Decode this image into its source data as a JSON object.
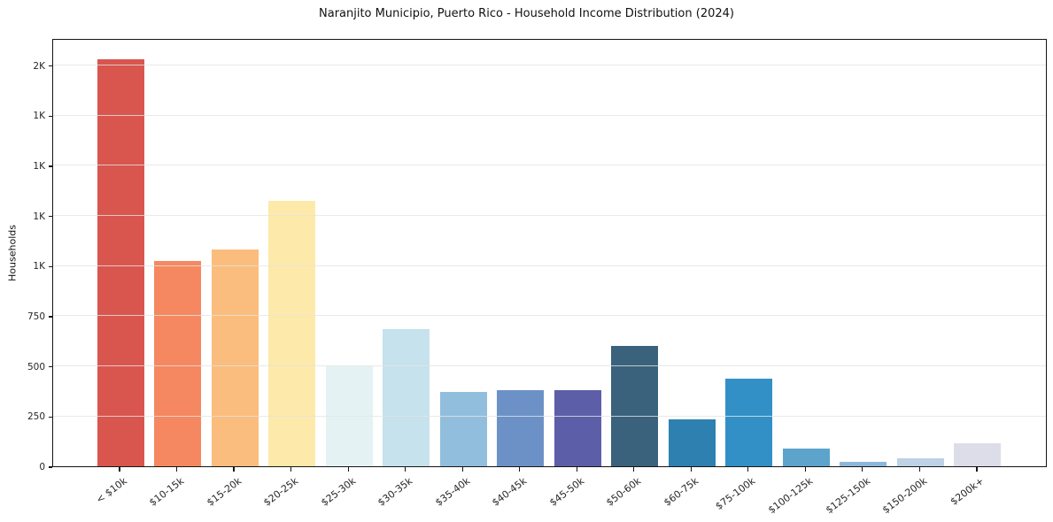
{
  "chart_data": {
    "type": "bar",
    "title": "Naranjito Municipio, Puerto Rico - Household Income Distribution (2024)",
    "xlabel": "",
    "ylabel": "Households",
    "categories": [
      "< $10k",
      "$10-15k",
      "$15-20k",
      "$20-25k",
      "$25-30k",
      "$30-35k",
      "$35-40k",
      "$40-45k",
      "$45-50k",
      "$50-60k",
      "$60-75k",
      "$75-100k",
      "$100-125k",
      "$125-150k",
      "$150-200k",
      "$200k+"
    ],
    "values": [
      2030,
      1025,
      1080,
      1325,
      500,
      685,
      370,
      380,
      380,
      600,
      235,
      435,
      90,
      20,
      40,
      115
    ],
    "bar_colors": [
      "#d9564f",
      "#f58860",
      "#fbbd7d",
      "#fde9a9",
      "#e4f2f3",
      "#c6e2ec",
      "#91bedc",
      "#6c91c6",
      "#5c5fa7",
      "#3a627c",
      "#2e80b0",
      "#3390c6",
      "#5ca4cc",
      "#8db7da",
      "#bdd1e7",
      "#dcdde9"
    ],
    "ylim": [
      0,
      2135
    ],
    "yticks": [
      {
        "value": 0,
        "label": "0"
      },
      {
        "value": 250,
        "label": "250"
      },
      {
        "value": 500,
        "label": "500"
      },
      {
        "value": 750,
        "label": "750"
      },
      {
        "value": 1000,
        "label": "1K"
      },
      {
        "value": 1250,
        "label": "1K"
      },
      {
        "value": 1500,
        "label": "1K"
      },
      {
        "value": 1750,
        "label": "1K"
      },
      {
        "value": 2000,
        "label": "2K"
      }
    ],
    "grid": true,
    "grid_color": "rgba(228,228,228,0.8)",
    "axis_color": "#151515",
    "legend": false,
    "legend_position": "none",
    "plot_background": "#ffffff"
  }
}
